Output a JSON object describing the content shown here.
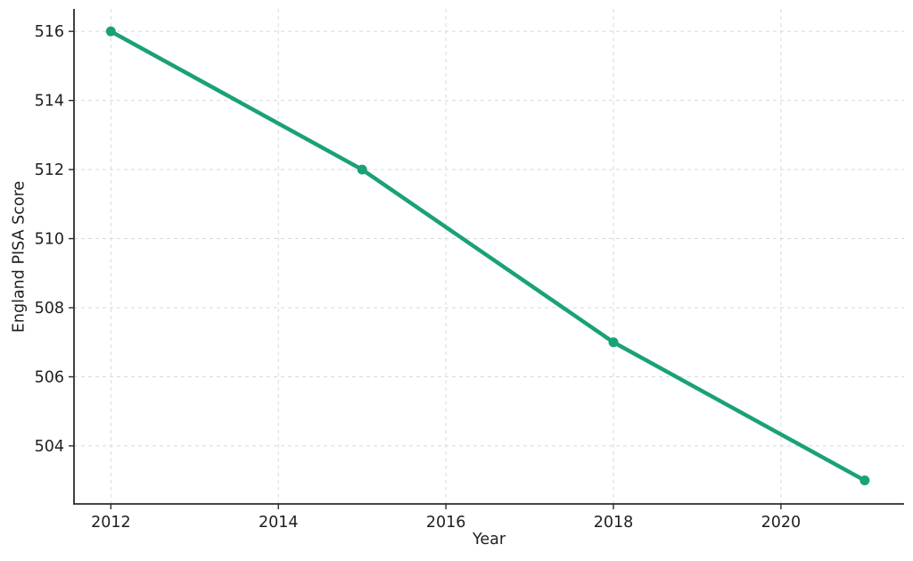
{
  "chart_data": {
    "type": "line",
    "title": "",
    "xlabel": "Year",
    "ylabel": "England PISA Score",
    "x": [
      2012,
      2015,
      2018,
      2021
    ],
    "values": [
      516,
      512,
      507,
      503
    ],
    "x_ticks": [
      2012,
      2014,
      2016,
      2018,
      2020
    ],
    "y_ticks": [
      504,
      506,
      508,
      510,
      512,
      514,
      516
    ],
    "xlim": [
      2011.56,
      2021.47
    ],
    "ylim": [
      502.32,
      516.65
    ],
    "grid": "dashed",
    "legend_position": "none",
    "colors": {
      "line": "#1aa179",
      "marker": "#1aa179",
      "grid": "#d9d9d9",
      "spine": "#2b2b2b",
      "tick_text": "#1f1f1f",
      "background": "#ffffff"
    }
  }
}
